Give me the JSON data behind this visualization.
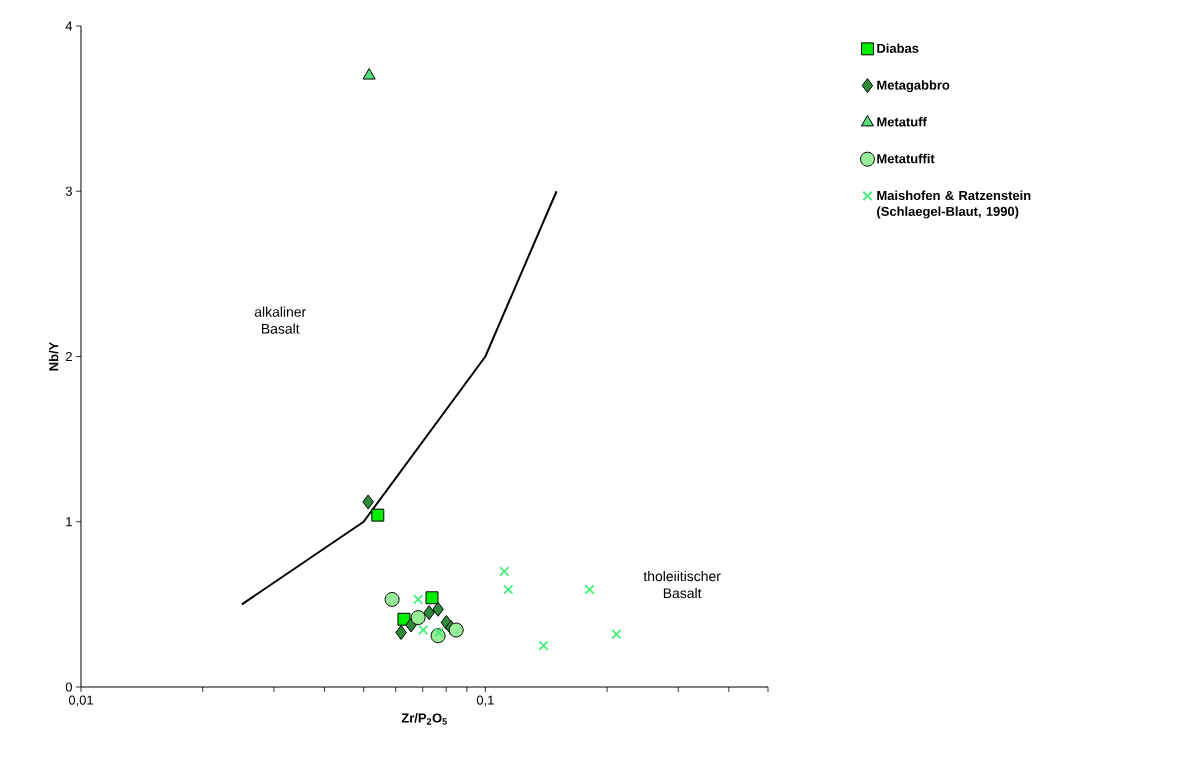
{
  "chart_data": {
    "type": "scatter",
    "xlabel": "Zr/P$_{2}$O$_{5}$",
    "ylabel": "Nb/Y",
    "log": "x",
    "xlim": [
      0.01,
      0.5
    ],
    "ylim": [
      0,
      4
    ],
    "xticks": [
      {
        "value": 0.01,
        "label": "0,01"
      },
      {
        "value": 0.02,
        "label": null
      },
      {
        "value": 0.03,
        "label": null
      },
      {
        "value": 0.04,
        "label": null
      },
      {
        "value": 0.05,
        "label": null
      },
      {
        "value": 0.06,
        "label": null
      },
      {
        "value": 0.07,
        "label": null
      },
      {
        "value": 0.08,
        "label": null
      },
      {
        "value": 0.09,
        "label": null
      },
      {
        "value": 0.1,
        "label": "0,1"
      },
      {
        "value": 0.2,
        "label": null
      },
      {
        "value": 0.3,
        "label": null
      },
      {
        "value": 0.4,
        "label": null
      },
      {
        "value": 0.5,
        "label": null
      }
    ],
    "yticks": [
      0,
      1,
      2,
      3,
      4
    ],
    "grid": false,
    "legend": "right",
    "series": [
      {
        "type": "line",
        "color": "#000000",
        "marker": "none",
        "line_style": "solid",
        "x": [
          0.025,
          0.05,
          0.1,
          0.15
        ],
        "values": [
          0.5,
          1.0,
          2.0,
          3.0
        ]
      },
      {
        "name": "Diabas",
        "color": "#00ee00",
        "marker": "square",
        "x": [
          0.0542,
          0.0738,
          0.0629
        ],
        "values": [
          1.04,
          0.54,
          0.41
        ]
      },
      {
        "name": "Metagabbro",
        "color": "#2f8a3a",
        "marker": "diamond",
        "x": [
          0.0513,
          0.0619,
          0.0655,
          0.0726,
          0.0764,
          0.0801,
          0.0822
        ],
        "values": [
          1.12,
          0.33,
          0.375,
          0.45,
          0.47,
          0.39,
          0.36
        ]
      },
      {
        "name": "Metatuff",
        "color": "#55dd77",
        "marker": "triangle",
        "x": [
          0.0516
        ],
        "values": [
          3.7
        ]
      },
      {
        "name": "Metatuffit",
        "color": "#99ee99",
        "marker": "circle",
        "x": [
          0.0588,
          0.0682,
          0.0764,
          0.0847
        ],
        "values": [
          0.53,
          0.42,
          0.31,
          0.345
        ]
      },
      {
        "name": "Maishofen & Ratzenstein (Schlaegel-Blaut, 1990)",
        "color": "#44ee77",
        "marker": "cross",
        "x": [
          0.1114,
          0.1139,
          0.181,
          0.1393,
          0.211,
          0.0682,
          0.0702,
          0.0768
        ],
        "values": [
          0.7,
          0.59,
          0.59,
          0.25,
          0.32,
          0.53,
          0.345,
          0.33
        ]
      }
    ],
    "annotations": [
      "alkaliner Basalt",
      "tholeiitischer Basalt"
    ]
  }
}
